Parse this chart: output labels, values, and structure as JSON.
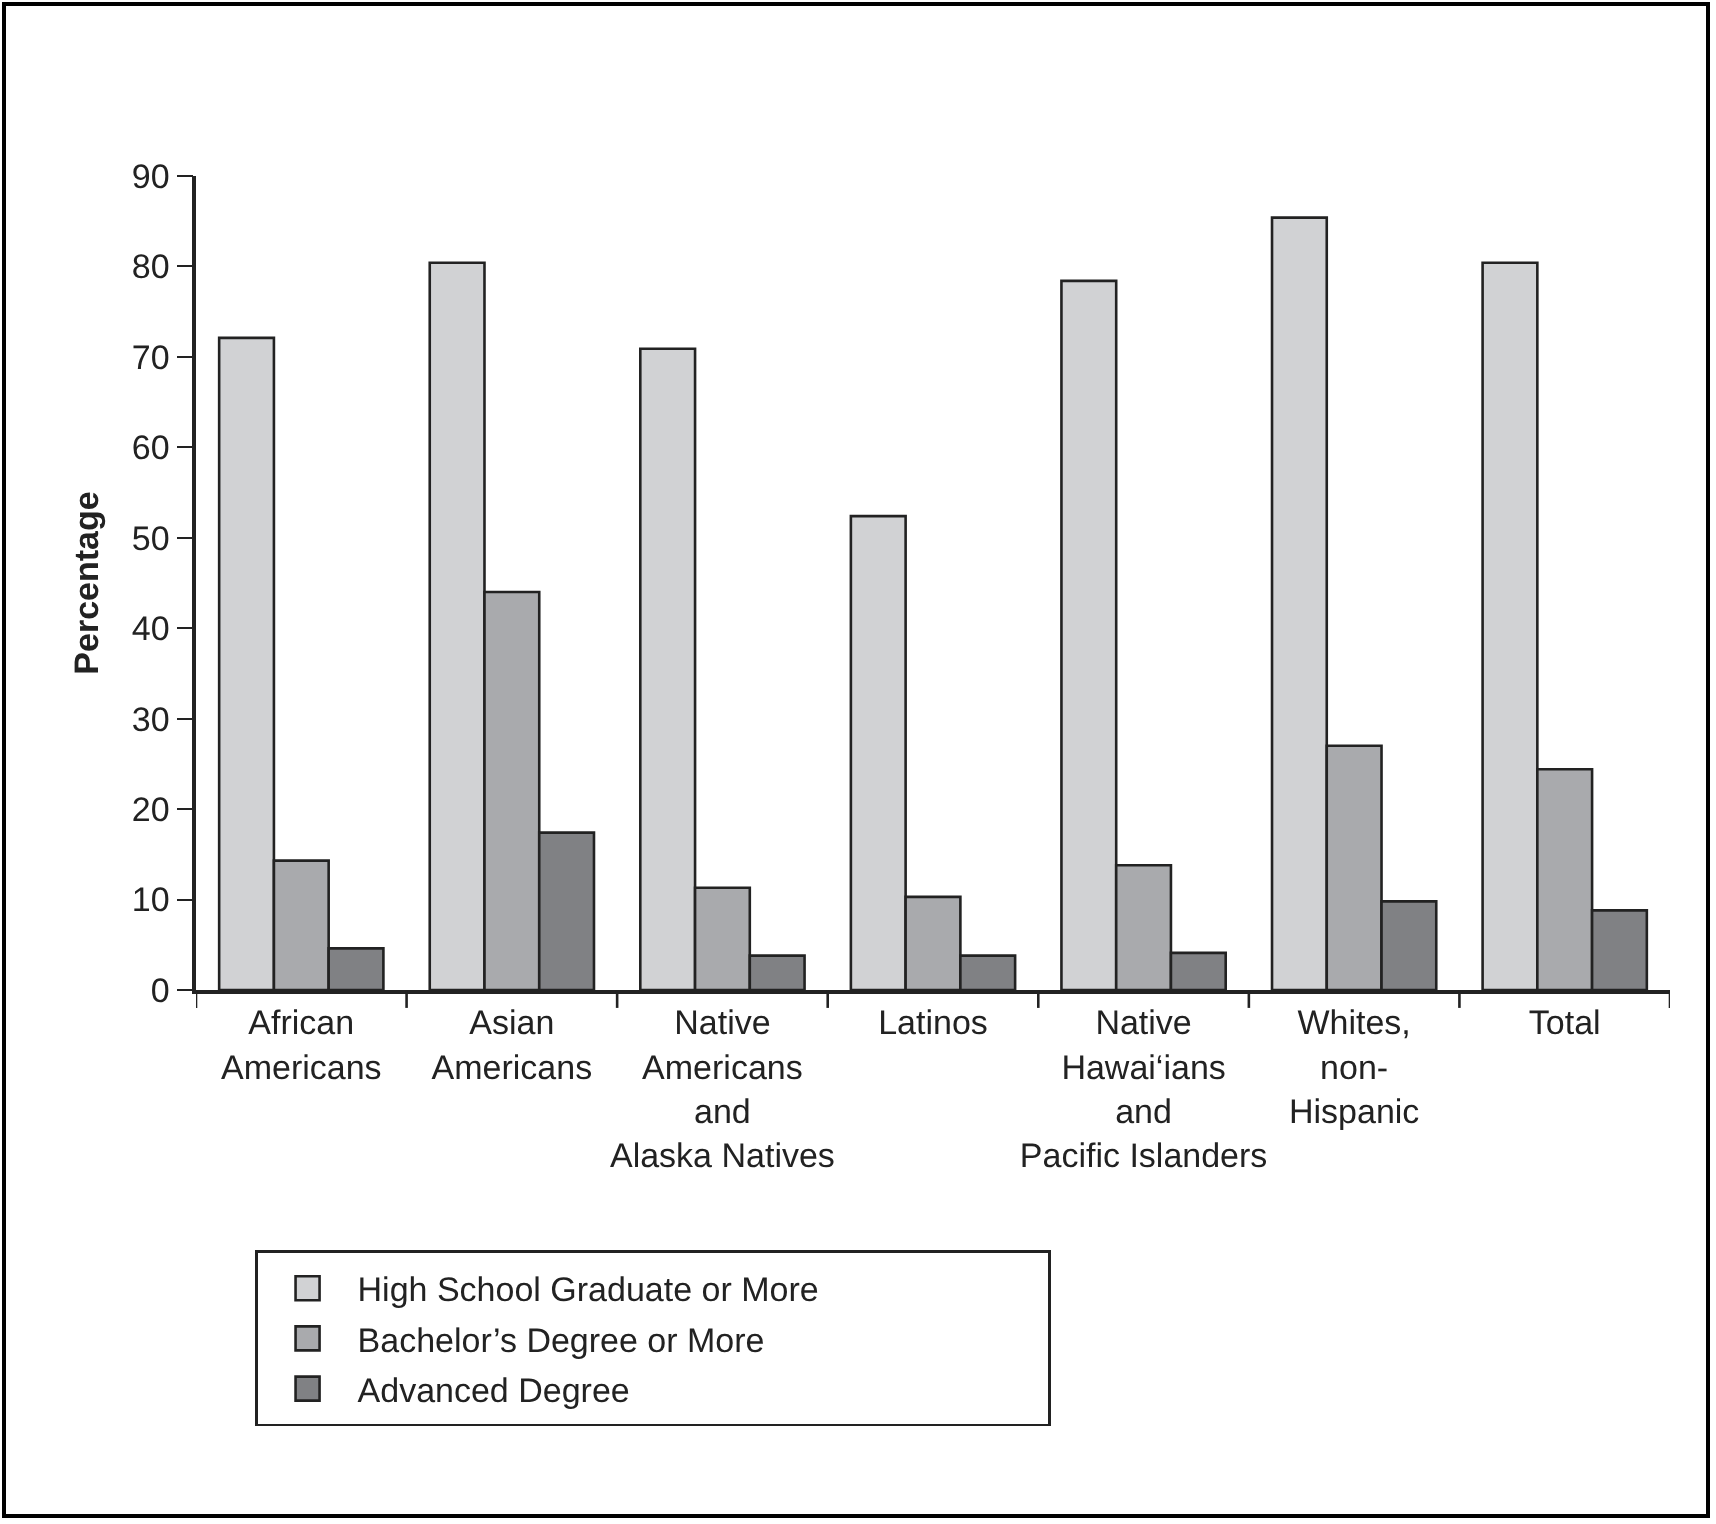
{
  "chart_data": {
    "type": "bar",
    "ylabel": "Percentage",
    "categories": [
      "African\nAmericans",
      "Asian\nAmericans",
      "Native\nAmericans\nand\nAlaska Natives",
      "Latinos",
      "Native\nHawai‘ians\nand\nPacific Islanders",
      "Whites,\nnon-\nHispanic",
      "Total"
    ],
    "series": [
      {
        "name": "High School Graduate or More",
        "color": "#d1d2d4",
        "values": [
          72.1,
          80.4,
          70.9,
          52.4,
          78.4,
          85.4,
          80.4
        ]
      },
      {
        "name": "Bachelor’s Degree or More",
        "color": "#a9aaad",
        "values": [
          14.3,
          44.0,
          11.3,
          10.3,
          13.8,
          27.0,
          24.4
        ]
      },
      {
        "name": "Advanced Degree",
        "color": "#808184",
        "values": [
          4.6,
          17.4,
          3.8,
          3.8,
          4.1,
          9.8,
          8.8
        ]
      }
    ],
    "ylim": [
      0,
      90
    ],
    "yticks": [
      0,
      10,
      20,
      30,
      40,
      50,
      60,
      70,
      80,
      90
    ],
    "grid": false,
    "legend": "bottom"
  }
}
